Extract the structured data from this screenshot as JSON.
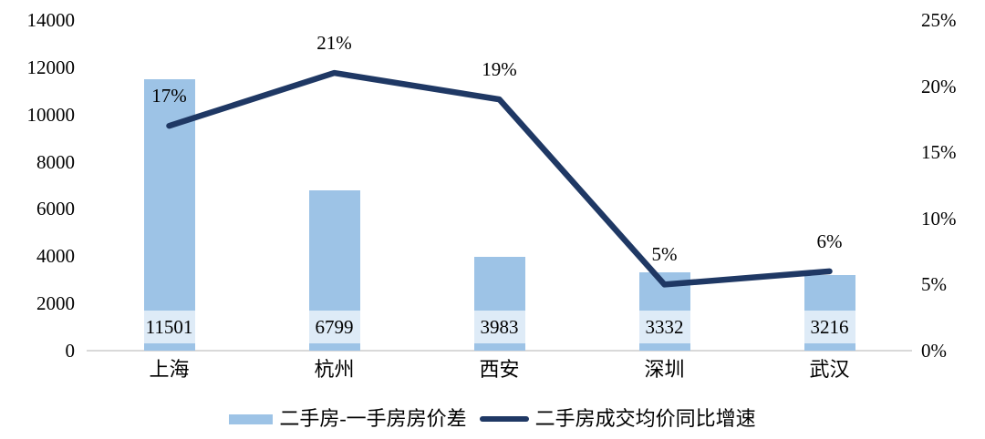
{
  "chart_data": {
    "type": "combo",
    "title": "",
    "categories": [
      "上海",
      "杭州",
      "西安",
      "深圳",
      "武汉"
    ],
    "series": [
      {
        "name": "二手房-一手房房价差",
        "type": "bar",
        "axis": "left",
        "values": [
          11501,
          6799,
          3983,
          3332,
          3216
        ],
        "labels": [
          "11501",
          "6799",
          "3983",
          "3332",
          "3216"
        ],
        "color": "#9DC3E6",
        "label_background": "#DEEBF7"
      },
      {
        "name": "二手房成交均价同比增速",
        "type": "line",
        "axis": "right",
        "values": [
          17,
          21,
          19,
          5,
          6
        ],
        "labels": [
          "17%",
          "21%",
          "19%",
          "5%",
          "6%"
        ],
        "color": "#1F3864"
      }
    ],
    "left_axis": {
      "min": 0,
      "max": 14000,
      "step": 2000,
      "ticks": [
        "0",
        "2000",
        "4000",
        "6000",
        "8000",
        "10000",
        "12000",
        "14000"
      ]
    },
    "right_axis": {
      "min": 0,
      "max": 25,
      "step": 5,
      "ticks": [
        "0%",
        "5%",
        "10%",
        "15%",
        "20%",
        "25%"
      ]
    },
    "grid": false,
    "legend_position": "bottom",
    "axis_line_color": "#D9D9D9",
    "text_color": "#000000"
  }
}
